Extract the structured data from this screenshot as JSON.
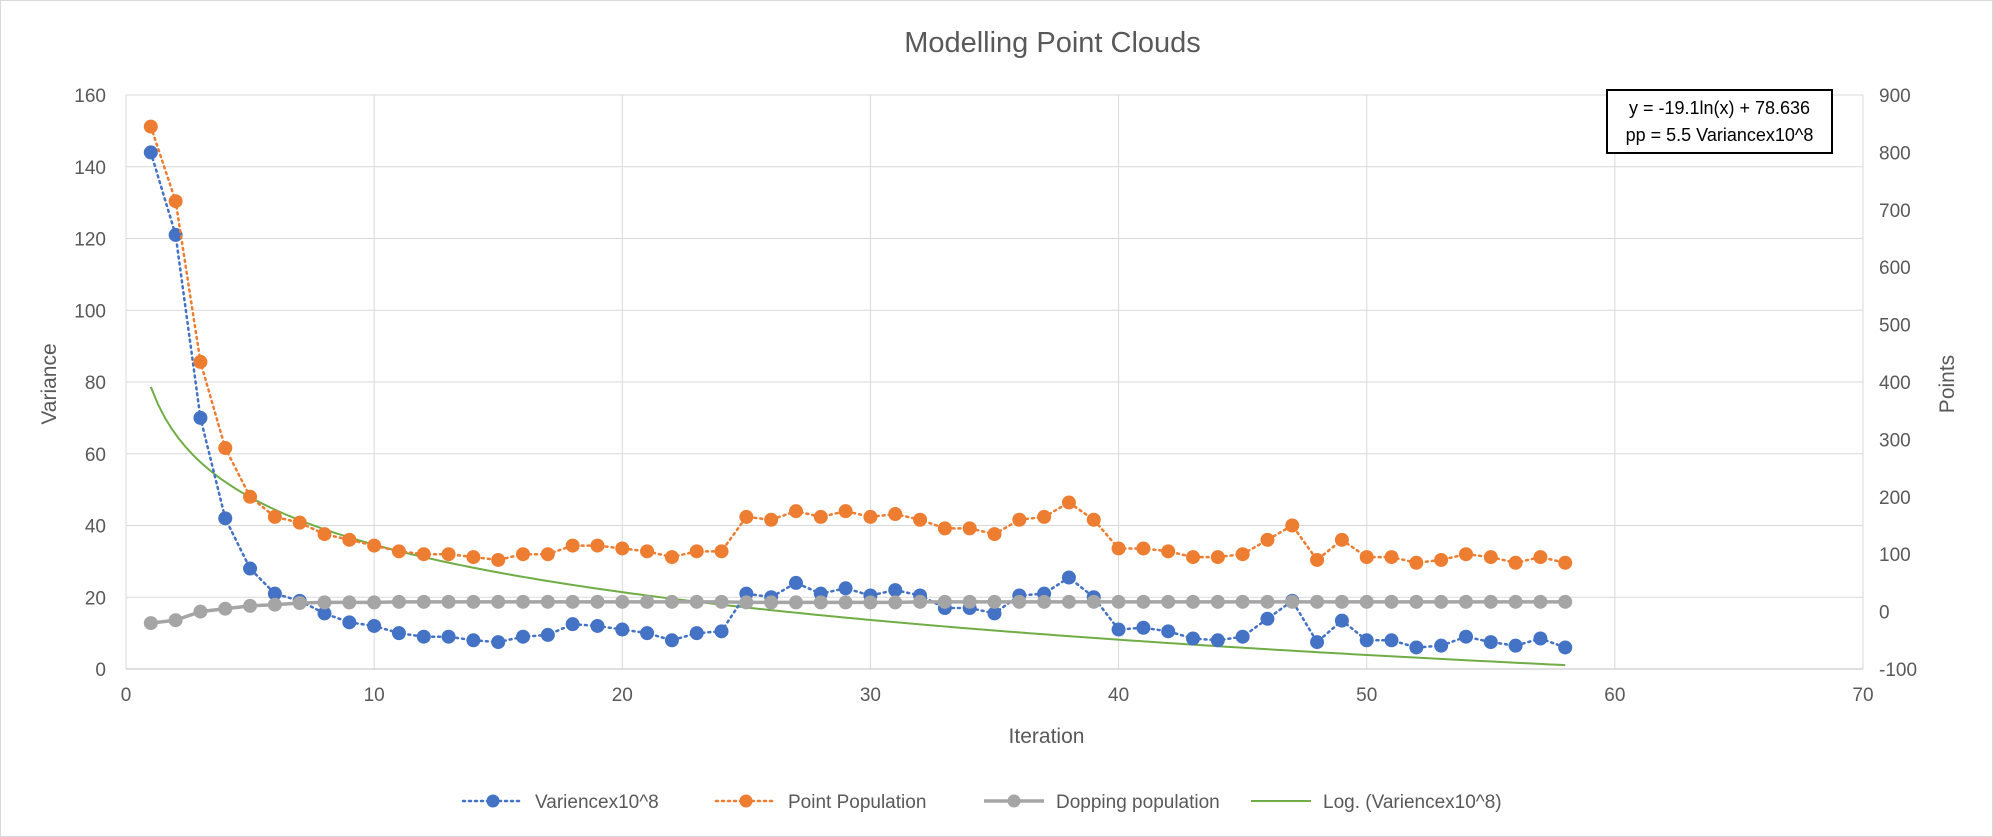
{
  "chart_data": {
    "type": "scatter",
    "title": "Modelling Point Clouds",
    "xlabel": "Iteration",
    "ylabel": "Variance",
    "y2label": "Points",
    "xlim": [
      0,
      70
    ],
    "ylim": [
      0,
      160
    ],
    "y2lim": [
      -100,
      900
    ],
    "x_ticks": [
      "0",
      "10",
      "20",
      "30",
      "40",
      "50",
      "60",
      "70"
    ],
    "y_ticks": [
      "0",
      "20",
      "40",
      "60",
      "80",
      "100",
      "120",
      "140",
      "160"
    ],
    "y2_ticks": [
      "-100",
      "0",
      "100",
      "200",
      "300",
      "400",
      "500",
      "600",
      "700",
      "800",
      "900"
    ],
    "grid": true,
    "legend_position": "bottom",
    "annotation_lines": [
      "y = -19.1ln(x) + 78.636",
      "pp = 5.5 Variancex10^8"
    ],
    "x": [
      1,
      2,
      3,
      4,
      5,
      6,
      7,
      8,
      9,
      10,
      11,
      12,
      13,
      14,
      15,
      16,
      17,
      18,
      19,
      20,
      21,
      22,
      23,
      24,
      25,
      26,
      27,
      28,
      29,
      30,
      31,
      32,
      33,
      34,
      35,
      36,
      37,
      38,
      39,
      40,
      41,
      42,
      43,
      44,
      45,
      46,
      47,
      48,
      49,
      50,
      51,
      52,
      53,
      54,
      55,
      56,
      57,
      58
    ],
    "series": [
      {
        "name": "Variencex10^8",
        "axis": "left",
        "color": "#4472c4",
        "style": "dotted-markers",
        "values": [
          144,
          121,
          70,
          42,
          28,
          21,
          19,
          15.5,
          13,
          12,
          10,
          9,
          9,
          8,
          7.5,
          9,
          9.5,
          12.5,
          12,
          11,
          10,
          8,
          10,
          10.5,
          21,
          20,
          24,
          21,
          22.5,
          20.5,
          22,
          20.5,
          17,
          17,
          15.5,
          20.5,
          21,
          25.5,
          20,
          11,
          11.5,
          10.5,
          8.5,
          8,
          9,
          14,
          19,
          7.5,
          13.5,
          8,
          8,
          6,
          6.5,
          9,
          7.5,
          6.5,
          8.5,
          6
        ]
      },
      {
        "name": "Point Population",
        "axis": "right",
        "color": "#ed7d31",
        "style": "dotted-markers",
        "values": [
          845,
          715,
          435,
          285,
          200,
          165,
          155,
          135,
          125,
          115,
          105,
          100,
          100,
          95,
          90,
          100,
          100,
          115,
          115,
          110,
          105,
          95,
          105,
          105,
          165,
          160,
          175,
          165,
          175,
          165,
          170,
          160,
          145,
          145,
          135,
          160,
          165,
          190,
          160,
          110,
          110,
          105,
          95,
          95,
          100,
          125,
          150,
          90,
          125,
          95,
          95,
          85,
          90,
          100,
          95,
          85,
          95,
          85
        ]
      },
      {
        "name": "Dopping population",
        "axis": "right",
        "color": "#a5a5a5",
        "style": "solid-markers",
        "values": [
          -20,
          -15,
          0,
          5,
          10,
          12,
          15,
          16,
          16,
          16,
          17,
          17,
          17,
          17,
          17,
          17,
          17,
          17,
          17,
          17,
          17,
          17,
          17,
          17,
          16,
          16,
          16,
          16,
          16,
          16,
          16,
          17,
          17,
          17,
          17,
          17,
          17,
          17,
          17,
          17,
          17,
          17,
          17,
          17,
          17,
          17,
          17,
          17,
          17,
          17,
          17,
          17,
          17,
          17,
          17,
          17,
          17,
          17
        ]
      },
      {
        "name": "Log. (Variencex10^8)",
        "axis": "left",
        "color": "#70ad47",
        "style": "trendline",
        "fit": {
          "type": "log",
          "a": -19.1,
          "b": 78.636,
          "x_from": 1,
          "x_to": 58
        }
      }
    ]
  }
}
